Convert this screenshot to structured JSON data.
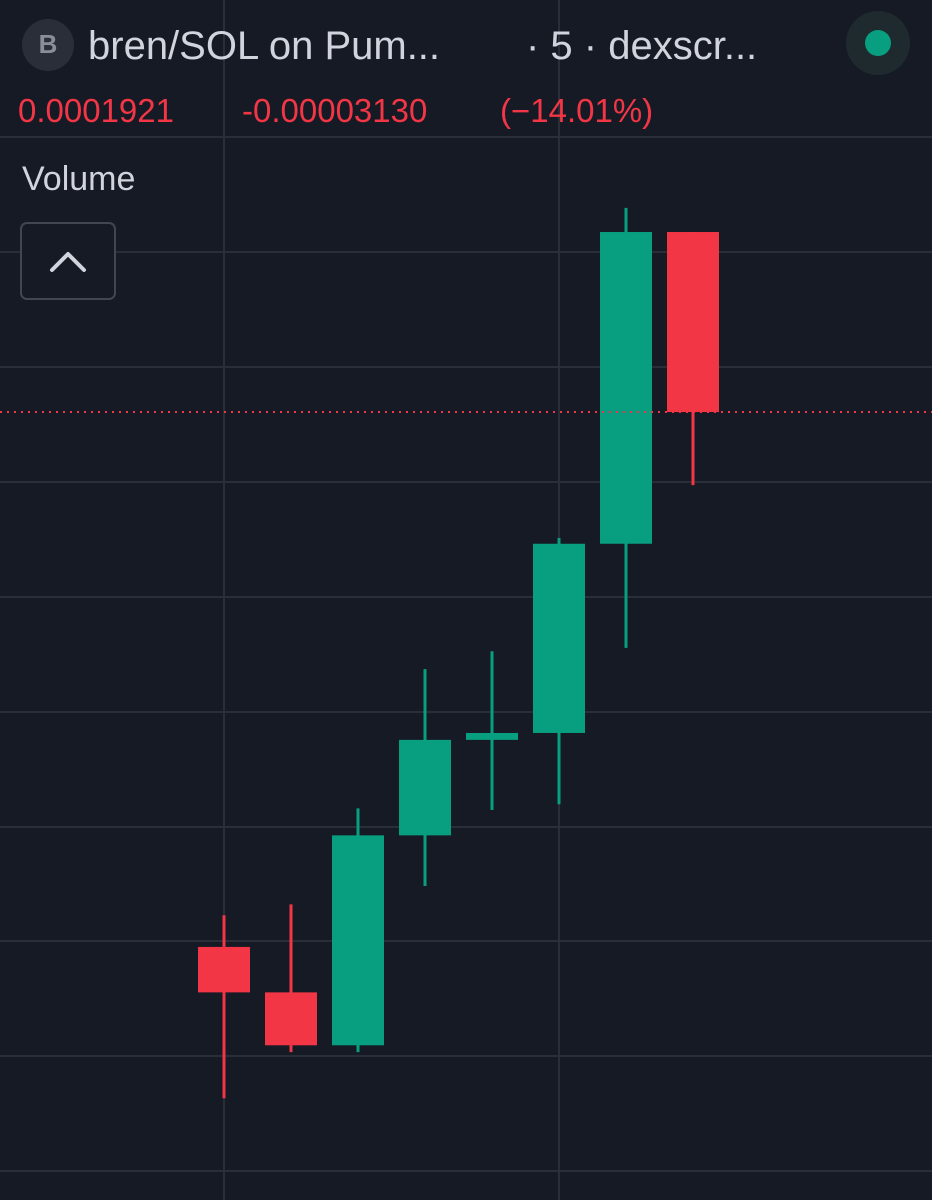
{
  "header": {
    "avatar": "B",
    "title": "bren/SOL on Pum...",
    "meta": "· 5 · dexscr...",
    "price": "0.0001921",
    "change": "-0.00003130",
    "change_pct": "(−14.01%)"
  },
  "legend": {
    "volume": "Volume"
  },
  "chart_data": {
    "type": "candlestick",
    "up_color": "#089e80",
    "down_color": "#f23645",
    "ylim": [
      5.51e-05,
      0.0002394
    ],
    "grid": true,
    "last_price": 0.0001921,
    "open": [
      9.91e-05,
      9.12e-05,
      8.2e-05,
      0.0001185,
      0.0001351,
      0.0001363,
      0.0001692,
      0.0002234
    ],
    "high": [
      0.0001046,
      0.0001065,
      0.0001232,
      0.0001474,
      0.0001505,
      0.0001702,
      0.0002276,
      0.0002234
    ],
    "low": [
      7.28e-05,
      8.08e-05,
      8.08e-05,
      0.0001097,
      0.0001229,
      0.0001239,
      0.0001511,
      0.0001794
    ],
    "close": [
      9.12e-05,
      8.2e-05,
      0.0001185,
      0.0001351,
      0.0001363,
      0.0001692,
      0.0002234,
      0.0001921
    ]
  }
}
